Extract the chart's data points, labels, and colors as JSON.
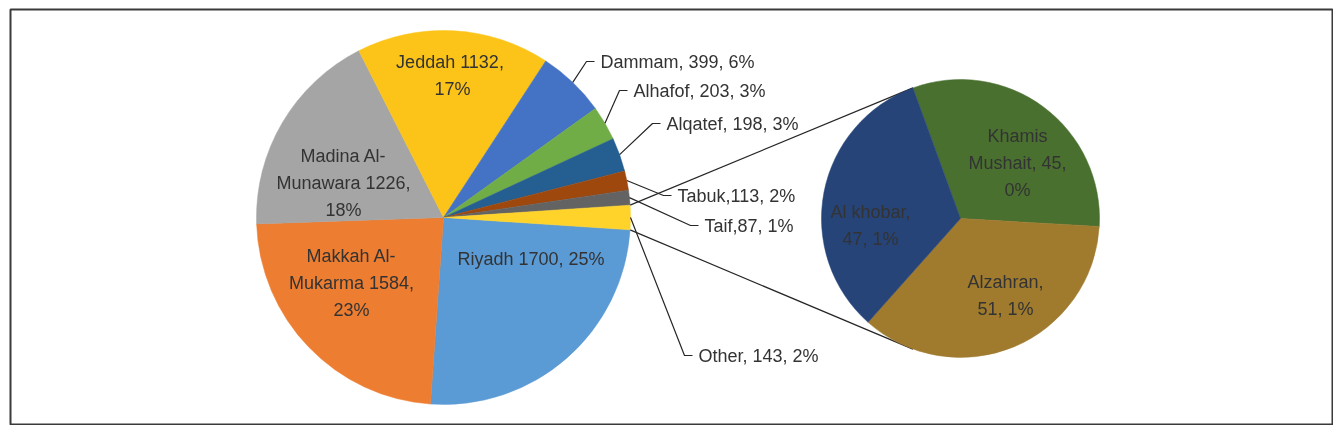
{
  "chart_data": [
    {
      "type": "pie",
      "categories": [
        "Riyadh",
        "Makkah Al-Mukarma",
        "Madina Al-Munawara",
        "Jeddah",
        "Dammam",
        "Alhafof",
        "Alqatef",
        "Tabuk",
        "Taif",
        "Other"
      ],
      "values": [
        1700,
        1584,
        1226,
        1132,
        399,
        203,
        198,
        113,
        87,
        143
      ],
      "colors": [
        "#5b9bd5",
        "#ed7d31",
        "#a5a5a5",
        "#fcc419",
        "#4472c4",
        "#70ad47",
        "#255e91",
        "#9e480e",
        "#636363",
        "#ffd32a"
      ],
      "value_labels": [
        "  1700, 25%",
        " 1584, 23%",
        " 1226, 18%",
        "  1132, 17%",
        ", 399, 6%",
        ", 203, 3%",
        ", 198, 3%",
        ",113, 2%",
        ",87, 1%",
        ", 143, 2%"
      ]
    },
    {
      "type": "pie",
      "categories": [
        "Khamis Mushait",
        "Alzahran",
        "Al khobar"
      ],
      "values": [
        45,
        51,
        47
      ],
      "colors": [
        "#4a7030",
        "#a07b2e",
        "#264478"
      ],
      "value_labels": [
        ", 45, 0%",
        ", 51, 1%",
        ", 47, 1%"
      ]
    }
  ]
}
